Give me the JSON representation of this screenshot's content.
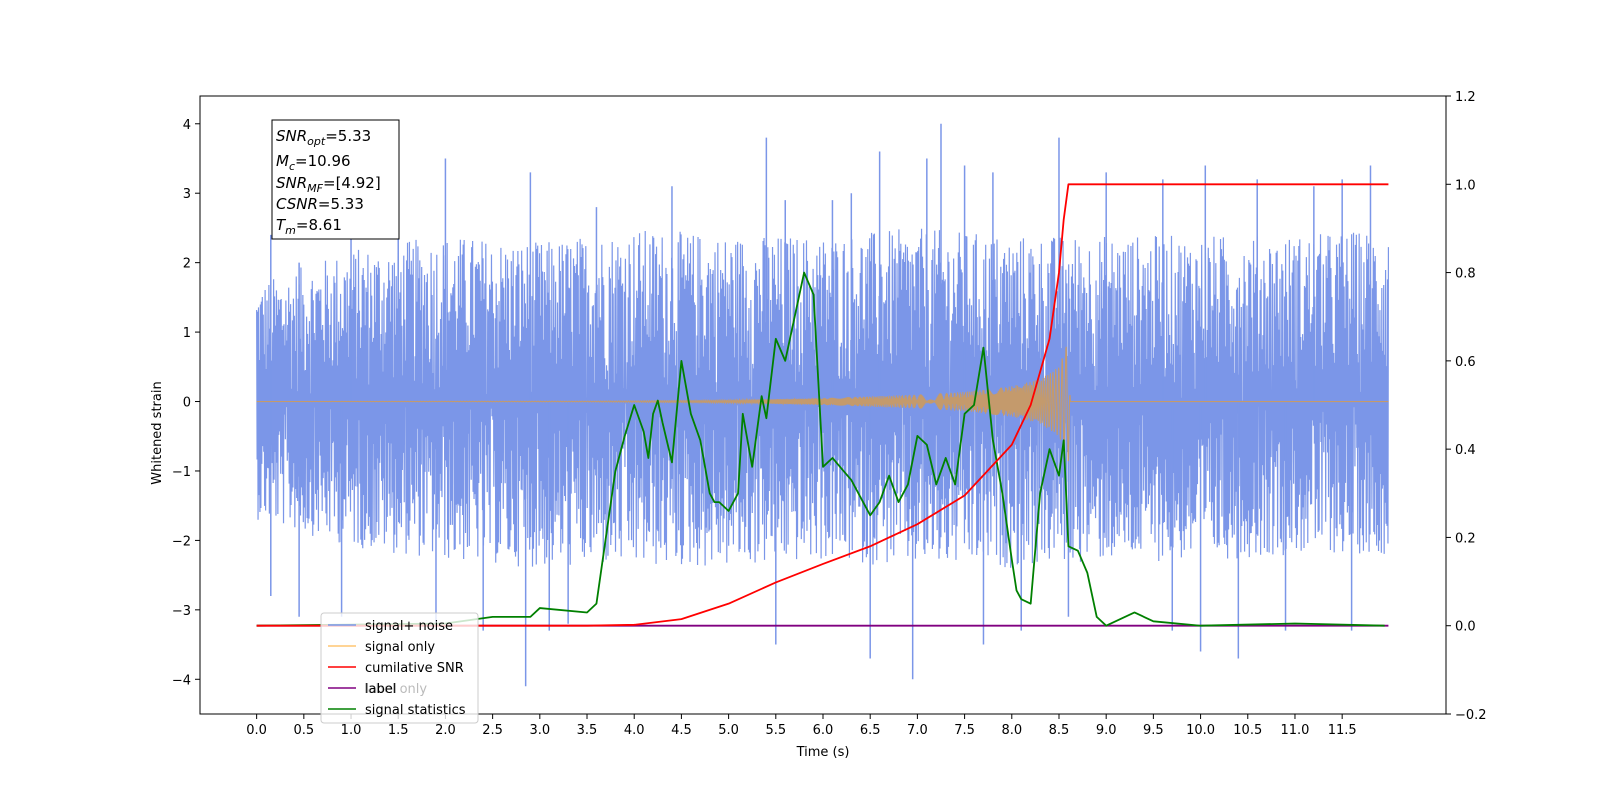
{
  "chart_data": {
    "type": "line",
    "xlabel": "Time (s)",
    "ylabel": "Whitened strain",
    "xlim": [
      -0.6,
      12.6
    ],
    "ylim": [
      -4.5,
      4.4
    ],
    "y2lim": [
      -0.2,
      1.2
    ],
    "x_ticks": [
      "0.0",
      "0.5",
      "1.0",
      "1.5",
      "2.0",
      "2.5",
      "3.0",
      "3.5",
      "4.0",
      "4.5",
      "5.0",
      "5.5",
      "6.0",
      "6.5",
      "7.0",
      "7.5",
      "8.0",
      "8.5",
      "9.0",
      "9.5",
      "10.0",
      "10.5",
      "11.0",
      "11.5"
    ],
    "y_ticks": [
      "4",
      "3",
      "2",
      "1",
      "0",
      "−1",
      "−2",
      "−3",
      "−4"
    ],
    "y2_ticks": [
      "1.2",
      "1.0",
      "0.8",
      "0.6",
      "0.4",
      "0.2",
      "0.0",
      "−0.2"
    ],
    "grid": false,
    "legend_position": "lower-left",
    "legend": [
      {
        "label": "signal+ noise",
        "color": "#7b96e8"
      },
      {
        "label": "signal only",
        "color": "#ffc672"
      },
      {
        "label": "cumilative SNR",
        "color": "#ff0000"
      },
      {
        "label": "label",
        "color": "#800080"
      },
      {
        "label": "signal statistics",
        "color": "#008000"
      }
    ],
    "hidden_legend_text": "label only",
    "info_box": {
      "snr_opt_main": "SNR",
      "snr_opt_sub": "opt",
      "snr_opt_val": "=5.33",
      "mc_main": "M",
      "mc_sub": "c",
      "mc_val": "=10.96",
      "snr_mf_main": "SNR",
      "snr_mf_sub": "MF",
      "snr_mf_val": "=[4.92]",
      "csnr_main": "CSNR",
      "csnr_val": "=5.33",
      "tm_main": "T",
      "tm_sub": "m",
      "tm_val": "=8.61"
    },
    "series": [
      {
        "name": "signal+ noise",
        "axis": "left",
        "color": "#7b96e8",
        "x_range": [
          0.0,
          11.99
        ],
        "envelope_upper": [
          [
            0.0,
            1.7
          ],
          [
            1.0,
            2.2
          ],
          [
            2.0,
            2.4
          ],
          [
            3.0,
            2.3
          ],
          [
            4.0,
            2.5
          ],
          [
            5.0,
            2.4
          ],
          [
            6.0,
            2.4
          ],
          [
            7.0,
            2.5
          ],
          [
            8.0,
            2.4
          ],
          [
            9.0,
            2.4
          ],
          [
            10.0,
            2.4
          ],
          [
            11.0,
            2.4
          ],
          [
            11.99,
            2.5
          ]
        ],
        "envelope_lower": [
          [
            0.0,
            -1.7
          ],
          [
            1.0,
            -2.1
          ],
          [
            2.0,
            -2.3
          ],
          [
            3.0,
            -2.4
          ],
          [
            4.0,
            -2.4
          ],
          [
            5.0,
            -2.4
          ],
          [
            6.0,
            -2.3
          ],
          [
            7.0,
            -2.4
          ],
          [
            8.0,
            -2.4
          ],
          [
            9.0,
            -2.3
          ],
          [
            10.0,
            -2.3
          ],
          [
            11.0,
            -2.2
          ],
          [
            11.99,
            -2.2
          ]
        ],
        "peaks_up": [
          [
            0.15,
            2.4
          ],
          [
            0.45,
            2.0
          ],
          [
            1.0,
            2.6
          ],
          [
            1.5,
            2.7
          ],
          [
            2.0,
            3.5
          ],
          [
            2.9,
            3.3
          ],
          [
            3.6,
            2.8
          ],
          [
            4.4,
            3.1
          ],
          [
            5.4,
            3.8
          ],
          [
            5.6,
            2.9
          ],
          [
            6.1,
            2.9
          ],
          [
            6.3,
            3.0
          ],
          [
            6.6,
            3.6
          ],
          [
            7.1,
            3.5
          ],
          [
            7.25,
            4.0
          ],
          [
            7.5,
            3.4
          ],
          [
            7.8,
            3.3
          ],
          [
            8.5,
            3.8
          ],
          [
            9.0,
            3.3
          ],
          [
            9.6,
            3.2
          ],
          [
            10.05,
            3.4
          ],
          [
            10.6,
            3.2
          ],
          [
            11.2,
            3.1
          ],
          [
            11.5,
            3.2
          ],
          [
            11.8,
            3.4
          ]
        ],
        "peaks_down": [
          [
            0.15,
            -2.8
          ],
          [
            0.45,
            -3.1
          ],
          [
            0.9,
            -3.1
          ],
          [
            1.9,
            -3.2
          ],
          [
            2.4,
            -3.3
          ],
          [
            2.85,
            -4.1
          ],
          [
            3.1,
            -3.3
          ],
          [
            3.3,
            -3.2
          ],
          [
            5.5,
            -3.5
          ],
          [
            6.5,
            -3.7
          ],
          [
            6.95,
            -4.0
          ],
          [
            7.7,
            -3.5
          ],
          [
            8.1,
            -3.3
          ],
          [
            8.6,
            -3.1
          ],
          [
            9.7,
            -3.3
          ],
          [
            10.0,
            -3.6
          ],
          [
            10.4,
            -3.7
          ],
          [
            10.9,
            -3.3
          ],
          [
            11.6,
            -3.3
          ]
        ]
      },
      {
        "name": "signal only",
        "axis": "left",
        "color": "#c49a6c",
        "chirp_amplitude": [
          [
            0.0,
            0.0
          ],
          [
            3.5,
            0.005
          ],
          [
            5.0,
            0.02
          ],
          [
            6.0,
            0.05
          ],
          [
            7.0,
            0.1
          ],
          [
            7.5,
            0.14
          ],
          [
            8.0,
            0.22
          ],
          [
            8.3,
            0.32
          ],
          [
            8.5,
            0.5
          ],
          [
            8.6,
            0.9
          ],
          [
            8.62,
            0.0
          ],
          [
            11.99,
            0.0
          ]
        ]
      },
      {
        "name": "cumilative SNR",
        "axis": "right",
        "color": "#ff0000",
        "x": [
          0.0,
          3.5,
          4.0,
          4.5,
          5.0,
          5.5,
          6.0,
          6.5,
          7.0,
          7.5,
          8.0,
          8.2,
          8.4,
          8.5,
          8.55,
          8.6,
          11.99
        ],
        "y": [
          0.0,
          0.0,
          0.002,
          0.015,
          0.05,
          0.098,
          0.14,
          0.18,
          0.23,
          0.295,
          0.41,
          0.5,
          0.65,
          0.8,
          0.92,
          1.0,
          1.0
        ]
      },
      {
        "name": "label",
        "axis": "right",
        "color": "#800080",
        "x": [
          0.0,
          11.99
        ],
        "y": [
          0.0,
          0.0
        ]
      },
      {
        "name": "signal statistics",
        "axis": "right",
        "color": "#008000",
        "x": [
          0.0,
          2.0,
          2.5,
          2.9,
          3.0,
          3.5,
          3.6,
          3.7,
          3.8,
          3.9,
          4.0,
          4.1,
          4.15,
          4.2,
          4.25,
          4.3,
          4.4,
          4.5,
          4.6,
          4.7,
          4.8,
          4.85,
          4.9,
          5.0,
          5.1,
          5.15,
          5.25,
          5.35,
          5.4,
          5.5,
          5.6,
          5.7,
          5.8,
          5.9,
          6.0,
          6.1,
          6.3,
          6.5,
          6.6,
          6.7,
          6.8,
          6.9,
          7.0,
          7.1,
          7.2,
          7.3,
          7.4,
          7.5,
          7.6,
          7.7,
          7.8,
          7.9,
          8.0,
          8.05,
          8.1,
          8.2,
          8.3,
          8.4,
          8.5,
          8.55,
          8.6,
          8.7,
          8.8,
          8.9,
          9.0,
          9.3,
          9.5,
          10.0,
          11.0,
          11.95
        ],
        "y": [
          0.0,
          0.005,
          0.02,
          0.02,
          0.04,
          0.03,
          0.05,
          0.2,
          0.35,
          0.43,
          0.5,
          0.44,
          0.38,
          0.48,
          0.51,
          0.46,
          0.37,
          0.6,
          0.48,
          0.42,
          0.3,
          0.28,
          0.28,
          0.26,
          0.3,
          0.48,
          0.36,
          0.52,
          0.47,
          0.65,
          0.6,
          0.7,
          0.8,
          0.75,
          0.36,
          0.38,
          0.33,
          0.25,
          0.28,
          0.34,
          0.28,
          0.32,
          0.43,
          0.41,
          0.32,
          0.38,
          0.32,
          0.48,
          0.5,
          0.63,
          0.42,
          0.3,
          0.15,
          0.08,
          0.06,
          0.05,
          0.3,
          0.4,
          0.34,
          0.42,
          0.18,
          0.17,
          0.12,
          0.02,
          0.0,
          0.03,
          0.01,
          0.0,
          0.005,
          0.0
        ]
      }
    ]
  }
}
